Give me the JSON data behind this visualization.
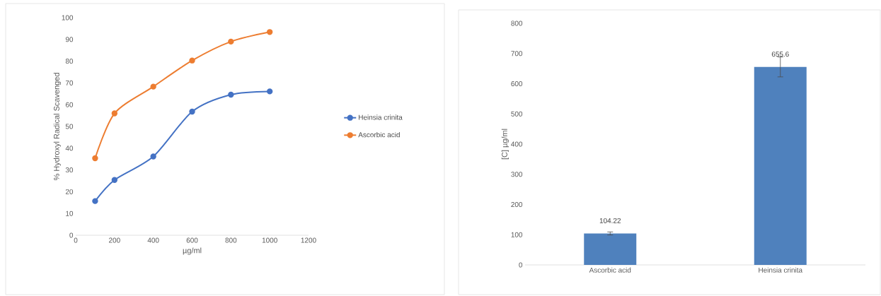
{
  "chart_data": [
    {
      "type": "line",
      "xlabel": "µg/ml",
      "ylabel": "% Hydroxyl Radical Scavenged",
      "x": [
        100,
        200,
        400,
        600,
        800,
        1000
      ],
      "series": [
        {
          "name": "Heinsia crinita",
          "color": "#4472c4",
          "values": [
            15.7,
            25.4,
            36.2,
            56.8,
            64.6,
            66.1
          ]
        },
        {
          "name": "Ascorbic acid",
          "color": "#ed7d31",
          "values": [
            35.4,
            56.0,
            68.3,
            80.3,
            89.0,
            93.4
          ]
        }
      ],
      "xlim": [
        0,
        1200
      ],
      "ylim": [
        0,
        100
      ],
      "xticks": [
        0,
        200,
        400,
        600,
        800,
        1000,
        1200
      ],
      "yticks": [
        0,
        10,
        20,
        30,
        40,
        50,
        60,
        70,
        80,
        90,
        100
      ],
      "legend": "right",
      "marker": "circle"
    },
    {
      "type": "bar",
      "ylabel": "[C] µg/ml",
      "categories": [
        "Ascorbic acid",
        "Heinsia crinita"
      ],
      "values": [
        104.22,
        655.6
      ],
      "color": "#4f81bd",
      "errors": [
        5,
        33
      ],
      "ylim": [
        0,
        800
      ],
      "yticks": [
        0,
        100,
        200,
        300,
        400,
        500,
        600,
        700,
        800
      ],
      "data_labels": true
    }
  ]
}
